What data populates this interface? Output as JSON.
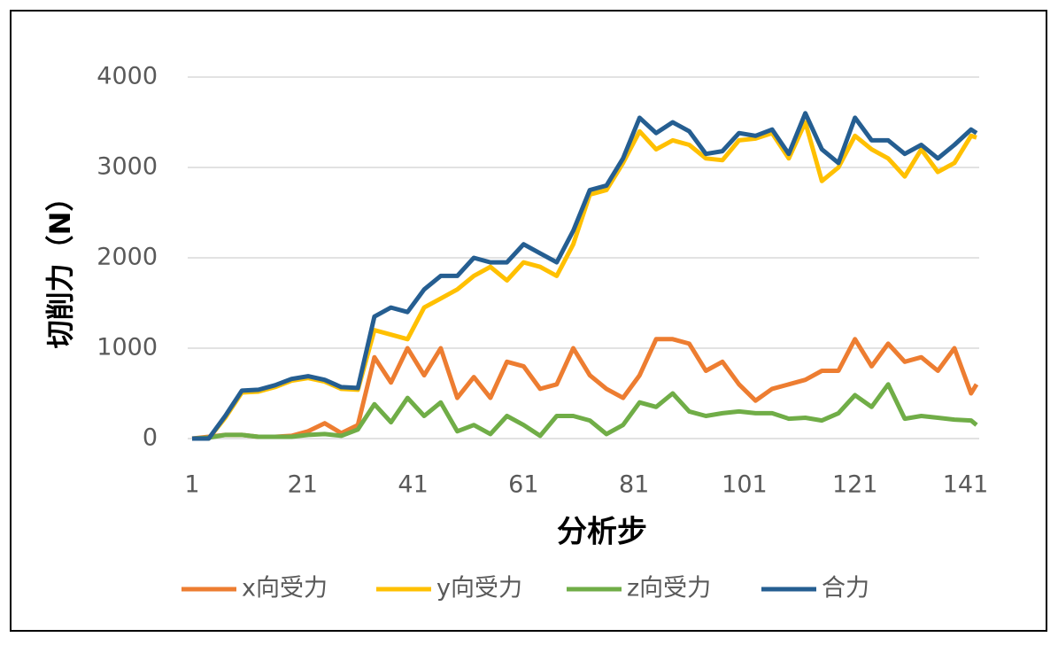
{
  "chart_data": {
    "type": "line",
    "x_label": "分析步",
    "y_label": "切削力（N）",
    "x": [
      1,
      4,
      7,
      10,
      13,
      16,
      19,
      22,
      25,
      28,
      31,
      34,
      37,
      40,
      43,
      46,
      49,
      52,
      55,
      58,
      61,
      64,
      67,
      70,
      73,
      76,
      79,
      82,
      85,
      88,
      91,
      94,
      97,
      100,
      103,
      106,
      109,
      112,
      115,
      118,
      121,
      124,
      127,
      130,
      133,
      136,
      139,
      142,
      143
    ],
    "series": [
      {
        "name": "x向受力",
        "color": "#ed7d31",
        "values": [
          0,
          20,
          40,
          40,
          20,
          20,
          30,
          80,
          170,
          60,
          150,
          900,
          620,
          1000,
          700,
          1000,
          450,
          680,
          450,
          850,
          800,
          550,
          600,
          1000,
          700,
          550,
          450,
          700,
          1100,
          1100,
          1050,
          750,
          850,
          600,
          420,
          550,
          600,
          650,
          750,
          750,
          1100,
          800,
          1050,
          850,
          900,
          750,
          1000,
          500,
          600
        ]
      },
      {
        "name": "y向受力",
        "color": "#ffc000",
        "values": [
          0,
          0,
          230,
          510,
          520,
          570,
          640,
          670,
          630,
          550,
          540,
          1200,
          1150,
          1100,
          1450,
          1550,
          1650,
          1800,
          1900,
          1750,
          1950,
          1900,
          1800,
          2150,
          2700,
          2750,
          3050,
          3400,
          3200,
          3300,
          3250,
          3100,
          3080,
          3300,
          3320,
          3380,
          3100,
          3500,
          2850,
          3000,
          3350,
          3200,
          3100,
          2900,
          3200,
          2950,
          3050,
          3350,
          3330
        ]
      },
      {
        "name": "z向受力",
        "color": "#70ad47",
        "values": [
          0,
          10,
          40,
          40,
          20,
          20,
          20,
          40,
          50,
          30,
          100,
          380,
          180,
          450,
          250,
          400,
          80,
          150,
          50,
          250,
          150,
          30,
          250,
          250,
          200,
          50,
          150,
          400,
          350,
          500,
          300,
          250,
          280,
          300,
          280,
          280,
          220,
          230,
          200,
          280,
          480,
          350,
          600,
          220,
          250,
          230,
          210,
          200,
          150
        ]
      },
      {
        "name": "合力",
        "color": "#255e91",
        "values": [
          0,
          0,
          250,
          530,
          540,
          590,
          660,
          690,
          650,
          570,
          560,
          1350,
          1450,
          1400,
          1650,
          1800,
          1800,
          2000,
          1950,
          1950,
          2150,
          2050,
          1950,
          2300,
          2750,
          2800,
          3100,
          3550,
          3380,
          3500,
          3400,
          3150,
          3180,
          3380,
          3350,
          3420,
          3150,
          3600,
          3200,
          3050,
          3550,
          3300,
          3300,
          3150,
          3250,
          3100,
          3250,
          3420,
          3380
        ]
      }
    ],
    "xlim": [
      1,
      143
    ],
    "xticks": [
      1,
      21,
      41,
      61,
      81,
      101,
      121,
      141
    ],
    "ylim": [
      0,
      4000
    ],
    "yticks": [
      0,
      1000,
      2000,
      3000,
      4000
    ],
    "grid": true,
    "legend": "bottom"
  }
}
